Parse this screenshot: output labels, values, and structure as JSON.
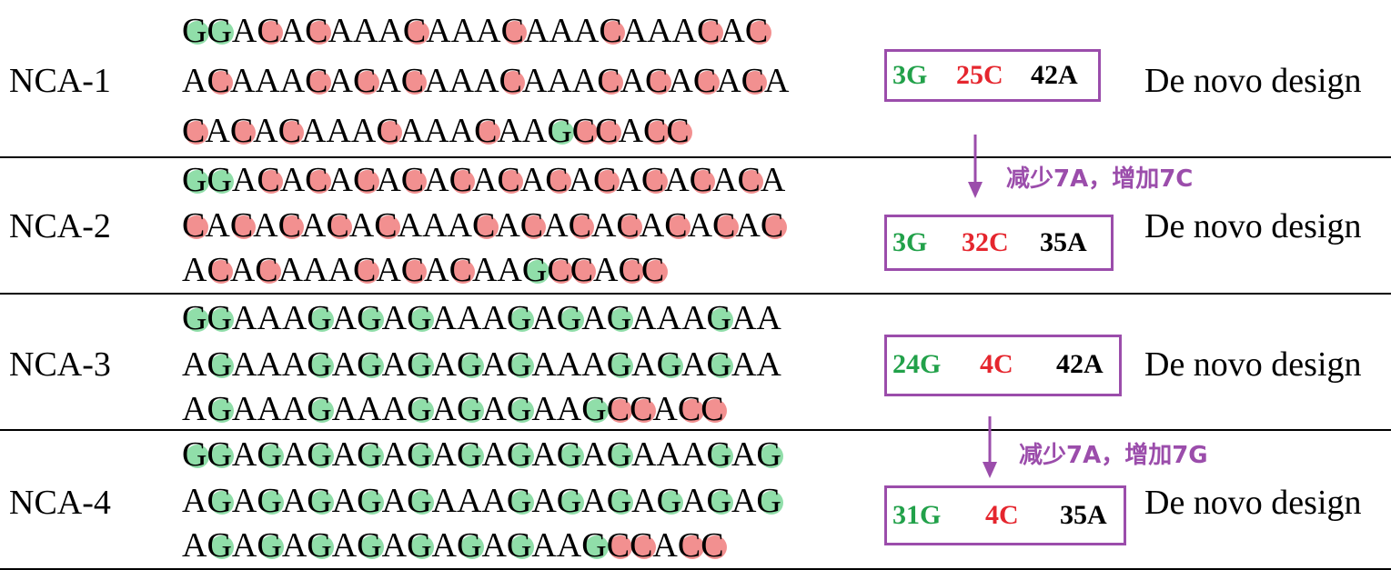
{
  "rows": [
    {
      "label": "NCA-1",
      "sequence_lines": [
        "GGACACAAACAAACAAACAAACAC",
        "ACAAACACACAAACAAACACACACA",
        "CACACAAACAAACAAGCCACC"
      ],
      "counts": {
        "g": "3G",
        "c": "25C",
        "a": "42A"
      },
      "design": "De novo design"
    },
    {
      "label": "NCA-2",
      "sequence_lines": [
        "GGACACACACACACACACACACACA",
        "CACACACACAAACACACACACACAC",
        "ACACAAACACACAAGCCACC"
      ],
      "counts": {
        "g": "3G",
        "c": "32C",
        "a": "35A"
      },
      "design": "De novo design"
    },
    {
      "label": "NCA-3",
      "sequence_lines": [
        "GGAAAGAGAGAAAGAGAGAAAGAA",
        "AGAAAGAGAGAGAGAAAGAGAGAA",
        "AGAAAGAAAGAGAGAAGCCACC"
      ],
      "counts": {
        "g": "24G",
        "c": "4C",
        "a": "42A"
      },
      "design": "De novo design"
    },
    {
      "label": "NCA-4",
      "sequence_lines": [
        "GGAGAGAGAGAGAGAGAGAAAGAG",
        "AGAGAGAGAGAAAGAGAGAGAGAG",
        "AGAGAGAGAGAGAGAAGCCACC"
      ],
      "counts": {
        "g": "31G",
        "c": "4C",
        "a": "35A"
      },
      "design": "De novo design"
    }
  ],
  "changes": [
    {
      "text": "减少7A，增加7C"
    },
    {
      "text": "减少7A，增加7G"
    }
  ],
  "colors": {
    "c_highlight": "#f07c7c",
    "g_highlight": "#7dd89a",
    "count_g": "#22a14a",
    "count_c": "#e5262e",
    "accent_purple": "#9b4dab"
  }
}
